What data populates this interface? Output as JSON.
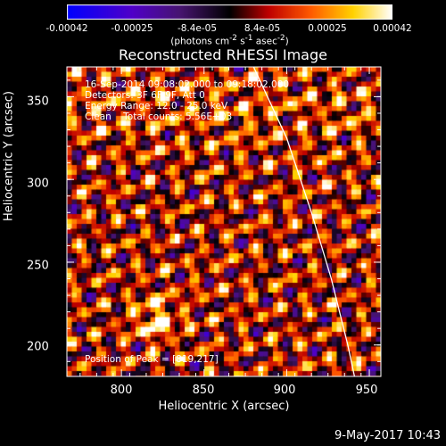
{
  "chart_data": {
    "type": "heatmap",
    "title": "Reconstructed RHESSI Image",
    "xlabel": "Heliocentric X (arcsec)",
    "ylabel": "Heliocentric Y (arcsec)",
    "xlim": [
      767,
      957
    ],
    "ylim": [
      181,
      368
    ],
    "xticks": [
      800,
      850,
      900,
      950
    ],
    "yticks": [
      200,
      250,
      300,
      350
    ],
    "colorbar": {
      "range": [
        -0.00042,
        0.00042
      ],
      "ticks": [
        "-0.00042",
        "-0.00025",
        "-8.4e-05",
        "8.4e-05",
        "0.00025",
        "0.00042"
      ],
      "unit_main": "(photons cm",
      "unit_sup1": "-2",
      "unit_mid": " s",
      "unit_sup2": "-1",
      "unit_mid2": " asec",
      "unit_sup3": "-2",
      "unit_end": ")"
    },
    "annotations": {
      "time": "16-Sep-2014 09:08:02.000 to 09:18:02.000",
      "detectors": "Detectors: 3F 6F 9F, Att 0",
      "energy": "Energy Range: 12.0 - 25.0 keV",
      "clean": "Clean    Total counts: 5.56E+03",
      "peak": "Position of Peak = [819,217]"
    },
    "peak_position": [
      819,
      217
    ],
    "limb_curve": [
      [
        880,
        368
      ],
      [
        900,
        325
      ],
      [
        915,
        280
      ],
      [
        927,
        240
      ],
      [
        937,
        200
      ],
      [
        941,
        181
      ]
    ]
  },
  "footer_date": "9-May-2017 10:43"
}
